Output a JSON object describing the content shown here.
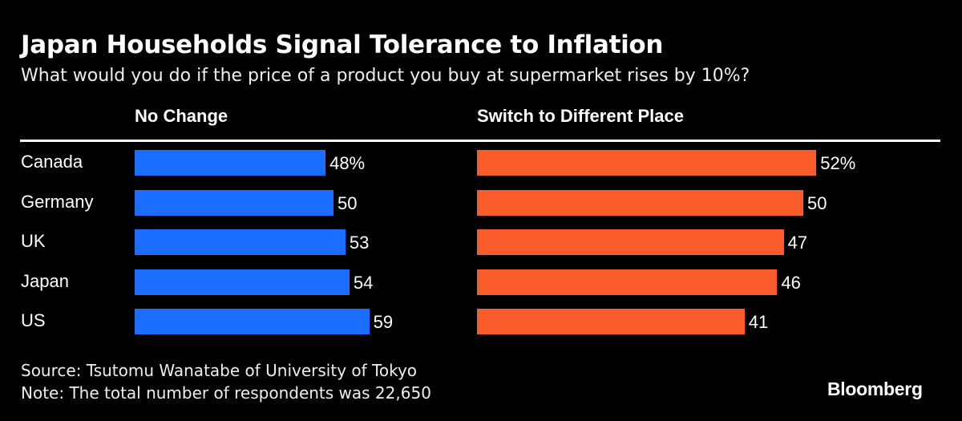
{
  "chart_data": {
    "type": "bar",
    "title": "Japan Households Signal Tolerance to Inflation",
    "subtitle": "What would you do if the price of a product you buy at supermarket rises by 10%?",
    "categories": [
      "Canada",
      "Germany",
      "UK",
      "Japan",
      "US"
    ],
    "series": [
      {
        "name": "No Change",
        "values": [
          48,
          50,
          53,
          54,
          59
        ],
        "labels": [
          "48%",
          "50",
          "53",
          "54",
          "59"
        ],
        "color": "#1a6dff"
      },
      {
        "name": "Switch to Different Place",
        "values": [
          52,
          50,
          47,
          46,
          41
        ],
        "labels": [
          "52%",
          "50",
          "47",
          "46",
          "41"
        ],
        "color": "#f95b2b"
      }
    ],
    "orientation": "horizontal",
    "grid": false,
    "source": "Source: Tsutomu Wanatabe of University of Tokyo",
    "note": "Note: The total number of respondents was 22,650"
  },
  "brand": "Bloomberg"
}
